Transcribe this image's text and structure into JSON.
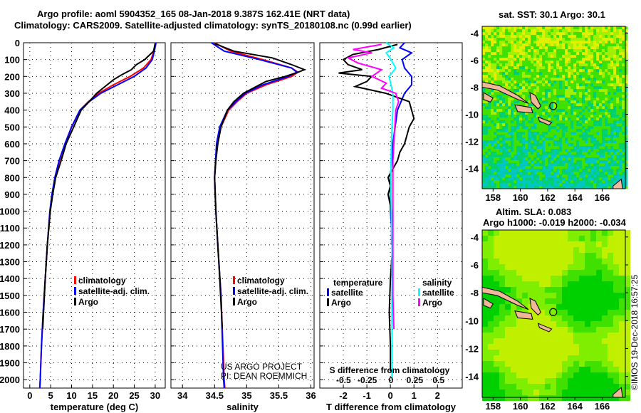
{
  "header": {
    "title1": "Argo profile: aoml 5904352_165 08-Jan-2018 9.387S 162.41E (NRT data)",
    "title2": "Climatology: CARS2009. Satellite-adjusted climatology: synTS_20180108.nc (0.99d earlier)"
  },
  "colors": {
    "clim": "#ff0000",
    "sat": "#0000ff",
    "argo": "#000000",
    "sal_sat": "#00ffff",
    "sal_argo": "#ff00ff"
  },
  "chart_data": [
    {
      "type": "line",
      "name": "temperature",
      "xlabel": "temperature (deg C)",
      "xlim": [
        -1.5,
        32.4
      ],
      "ylim": [
        2050,
        0
      ],
      "xticks": [
        0,
        5,
        10,
        15,
        20,
        25,
        30
      ],
      "yticks": [
        0,
        100,
        200,
        300,
        400,
        500,
        600,
        700,
        800,
        900,
        1000,
        1100,
        1200,
        1300,
        1400,
        1500,
        1600,
        1700,
        1800,
        1900,
        2000
      ],
      "legend": [
        "climatology",
        "satellite-adj. clim.",
        "Argo"
      ],
      "series": [
        {
          "name": "climatology",
          "depth": [
            0,
            50,
            100,
            150,
            200,
            250,
            300,
            350,
            400,
            500,
            600,
            700,
            800,
            900,
            1000,
            1200,
            1400,
            1600,
            1800,
            2000,
            2050
          ],
          "values": [
            30,
            29.7,
            29,
            27.2,
            24,
            20,
            16.5,
            14,
            12,
            10,
            8.5,
            7.1,
            6.1,
            5.4,
            4.9,
            4.2,
            3.7,
            3.2,
            2.8,
            2.5,
            2.4
          ]
        },
        {
          "name": "satellite-adj. clim.",
          "depth": [
            0,
            50,
            100,
            150,
            200,
            250,
            300,
            350,
            400,
            500,
            600,
            700,
            800,
            900,
            1000,
            1200,
            1400,
            1600,
            1800,
            2000,
            2050
          ],
          "values": [
            30.2,
            29.8,
            29.3,
            27.8,
            25,
            21,
            17,
            14.2,
            12,
            10,
            8.4,
            7,
            6,
            5.3,
            4.8,
            4.2,
            3.7,
            3.2,
            2.8,
            2.5,
            2.4
          ]
        },
        {
          "name": "Argo",
          "depth": [
            5,
            50,
            100,
            130,
            160,
            190,
            220,
            260,
            300,
            350,
            400,
            500,
            600,
            700,
            800,
            900,
            1000,
            1200,
            1400,
            1600,
            1700
          ],
          "values": [
            30,
            29.6,
            27.5,
            25.5,
            24.3,
            22,
            20,
            18,
            16,
            14.2,
            12.3,
            10.5,
            8.7,
            7.5,
            6.2,
            5.5,
            4.9,
            4.2,
            3.7,
            3.3,
            3.1
          ]
        }
      ]
    },
    {
      "type": "line",
      "name": "salinity",
      "xlabel": "salinity",
      "xlim": [
        33.82,
        36.05
      ],
      "ylim": [
        2050,
        0
      ],
      "xticks": [
        34,
        34.5,
        35,
        35.5,
        36
      ],
      "legend": [
        "climatology",
        "satellite-adj. clim.",
        "Argo"
      ],
      "annotation": [
        "US ARGO PROJECT",
        "PI: DEAN ROEMMICH"
      ],
      "series": [
        {
          "name": "climatology",
          "depth": [
            0,
            50,
            100,
            150,
            175,
            200,
            250,
            300,
            350,
            400,
            500,
            600,
            800,
            1000,
            1200,
            1500,
            2000,
            2050
          ],
          "values": [
            34.5,
            34.75,
            35.25,
            35.7,
            35.8,
            35.7,
            35.3,
            35.0,
            34.85,
            34.72,
            34.6,
            34.54,
            34.5,
            34.52,
            34.55,
            34.6,
            34.65,
            34.66
          ]
        },
        {
          "name": "satellite-adj. clim.",
          "depth": [
            0,
            50,
            100,
            150,
            175,
            200,
            250,
            300,
            350,
            400,
            500,
            600,
            800,
            1000,
            1200,
            1500,
            2000,
            2050
          ],
          "values": [
            34.45,
            34.65,
            35.2,
            35.7,
            35.78,
            35.65,
            35.25,
            34.98,
            34.83,
            34.7,
            34.58,
            34.53,
            34.5,
            34.52,
            34.55,
            34.6,
            34.64,
            34.65
          ]
        },
        {
          "name": "Argo",
          "depth": [
            5,
            50,
            90,
            130,
            160,
            175,
            200,
            230,
            270,
            300,
            350,
            400,
            500,
            600,
            700,
            800,
            1000,
            1200,
            1400,
            1700
          ],
          "values": [
            34.5,
            34.8,
            35.4,
            35.7,
            35.9,
            35.8,
            35.6,
            35.3,
            35.1,
            34.95,
            34.8,
            34.7,
            34.6,
            34.55,
            34.52,
            34.5,
            34.52,
            34.55,
            34.58,
            34.62
          ]
        }
      ]
    },
    {
      "type": "line",
      "name": "difference",
      "xlabel": "T difference from climatology",
      "xlabel2": "S difference from climatology",
      "xlim": [
        -3,
        3.05
      ],
      "xticks": [
        -2,
        -1,
        0,
        1,
        2
      ],
      "s_xlim": [
        -0.75,
        0.75
      ],
      "s_xticks": [
        -0.5,
        -0.25,
        0,
        0.25,
        0.5
      ],
      "legend_temperature": [
        "temperature",
        "satellite",
        "Argo"
      ],
      "legend_salinity": [
        "salinity",
        "satellite",
        "Argo"
      ],
      "series": [
        {
          "name": "T satellite",
          "axis": "T",
          "depth": [
            0,
            30,
            60,
            100,
            150,
            200,
            250,
            300,
            400,
            500,
            600,
            700,
            800,
            900,
            1000,
            1100,
            1200
          ],
          "values": [
            0.6,
            0.4,
            0.9,
            0.5,
            0.6,
            0.9,
            0.9,
            0.6,
            0.3,
            0.2,
            0.1,
            0.05,
            0,
            0,
            0,
            0.05,
            0.05
          ]
        },
        {
          "name": "T Argo",
          "axis": "T",
          "depth": [
            10,
            40,
            70,
            100,
            130,
            160,
            180,
            200,
            230,
            260,
            300,
            350,
            400,
            450,
            500,
            550,
            600,
            650,
            700,
            750,
            800,
            850,
            900,
            1000,
            1100,
            1200,
            1400,
            1600,
            1800,
            1950
          ],
          "values": [
            0.3,
            -0.5,
            -1.6,
            -2,
            -1.8,
            -1.2,
            -2.2,
            -0.8,
            -1.0,
            -1.5,
            -0.2,
            0.8,
            0.9,
            1.0,
            0.8,
            0.7,
            0.6,
            0.4,
            0.3,
            0.1,
            -0.1,
            0,
            -0.1,
            0.05,
            0.1,
            0.1,
            0,
            -0.05,
            0,
            0
          ]
        },
        {
          "name": "S satellite",
          "axis": "S",
          "depth": [
            0,
            30,
            60,
            100,
            150,
            200,
            300,
            400,
            500,
            700,
            900,
            1200,
            1500,
            2000
          ],
          "values": [
            -0.05,
            0.03,
            -0.05,
            0,
            0.05,
            -0.02,
            0.02,
            0.02,
            0.01,
            0,
            0,
            0.01,
            0.01,
            0.01
          ]
        },
        {
          "name": "S Argo",
          "axis": "S",
          "depth": [
            10,
            40,
            60,
            90,
            120,
            160,
            200,
            240,
            270,
            300,
            350,
            400,
            500,
            600,
            700,
            900,
            1200,
            1500,
            1700
          ],
          "values": [
            -0.1,
            -0.4,
            -0.2,
            -0.45,
            -0.35,
            -0.1,
            -0.2,
            -0.05,
            -0.1,
            0.05,
            0.08,
            0.05,
            0.04,
            0.03,
            0.02,
            0.02,
            0.02,
            0.02,
            0.03
          ]
        }
      ]
    },
    {
      "type": "heatmap",
      "name": "sst-map",
      "title": "sat. SST: 30.1  Argo: 30.1",
      "xlim": [
        157.2,
        167.7
      ],
      "ylim": [
        -15.5,
        -3.5
      ],
      "xticks": [
        158,
        160,
        162,
        164,
        166
      ],
      "yticks": [
        -4,
        -6,
        -8,
        -10,
        -12,
        -14
      ],
      "marker": {
        "lon": 162.41,
        "lat": -9.387
      }
    },
    {
      "type": "heatmap",
      "name": "sla-map",
      "title": "Altim. SLA: 0.083",
      "subtitle": "Argo h1000: -0.019 h2000: -0.034",
      "xlim": [
        157.2,
        167.7
      ],
      "ylim": [
        -15.5,
        -3.5
      ],
      "xticks": [
        158,
        160,
        162,
        164,
        166
      ],
      "yticks": [
        -4,
        -6,
        -8,
        -10,
        -12,
        -14
      ],
      "marker": {
        "lon": 162.41,
        "lat": -9.387
      }
    }
  ],
  "footer": {
    "credit": "©IMOS 19-Dec-2018 16:57:25"
  }
}
